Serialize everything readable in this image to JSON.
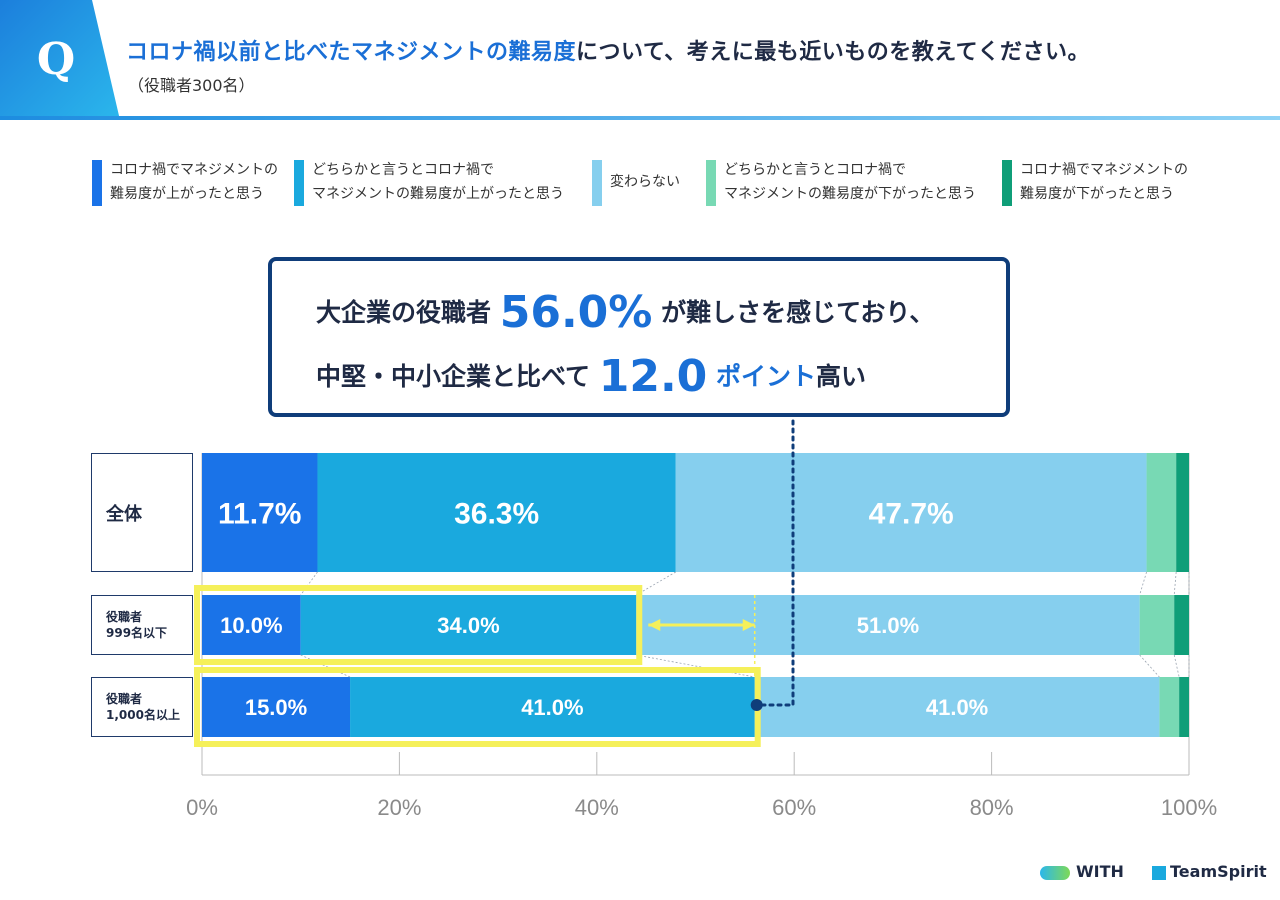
{
  "header": {
    "q_label": "Q",
    "title_highlight": "コロナ禍以前と比べたマネジメントの難易度",
    "title_rest": "について、考えに最も近いものを教えてください。",
    "subtitle": "（役職者300名）"
  },
  "legend": [
    {
      "line1": "コロナ禍でマネジメントの",
      "line2": "難易度が上がったと思う",
      "color": "#1a73e8"
    },
    {
      "line1": "どちらかと言うとコロナ禍で",
      "line2": "マネジメントの難易度が上がったと思う",
      "color": "#1aa9de"
    },
    {
      "line1": "変わらない",
      "line2": "",
      "color": "#86cfee"
    },
    {
      "line1": "どちらかと言うとコロナ禍で",
      "line2": "マネジメントの難易度が下がったと思う",
      "color": "#78d9b4"
    },
    {
      "line1": "コロナ禍でマネジメントの",
      "line2": "難易度が下がったと思う",
      "color": "#0f9e78"
    }
  ],
  "callout": {
    "line1_pre": "大企業の役職者",
    "line1_value": "56.0%",
    "line1_post": "が難しさを感じており、",
    "line2_pre": "中堅・中小企業と比べて",
    "line2_value": "12.0",
    "line2_unit": "ポイント",
    "line2_post": "高い"
  },
  "rows": {
    "all": {
      "label": "全体"
    },
    "small": {
      "label_line1": "役職者",
      "label_line2": "999名以下"
    },
    "large": {
      "label_line1": "役職者",
      "label_line2": "1,000名以上"
    }
  },
  "brands": {
    "with": "WITH",
    "teamspirit": "TeamSpirit"
  },
  "chart_data": {
    "type": "bar",
    "orientation": "horizontal",
    "stacked": true,
    "categories": [
      "全体",
      "役職者 999名以下",
      "役職者 1,000名以上"
    ],
    "series": [
      {
        "name": "コロナ禍でマネジメントの難易度が上がったと思う",
        "values": [
          11.7,
          10.0,
          15.0
        ],
        "labels": [
          "11.7%",
          "10.0%",
          "15.0%"
        ]
      },
      {
        "name": "どちらかと言うとコロナ禍でマネジメントの難易度が上がったと思う",
        "values": [
          36.3,
          34.0,
          41.0
        ],
        "labels": [
          "36.3%",
          "34.0%",
          "41.0%"
        ]
      },
      {
        "name": "変わらない",
        "values": [
          47.7,
          51.0,
          41.0
        ],
        "labels": [
          "47.7%",
          "51.0%",
          "41.0%"
        ]
      },
      {
        "name": "どちらかと言うとコロナ禍でマネジメントの難易度が下がったと思う",
        "values": [
          3.0,
          3.5,
          2.0
        ],
        "labels": [
          "",
          "",
          ""
        ]
      },
      {
        "name": "コロナ禍でマネジメントの難易度が下がったと思う",
        "values": [
          1.3,
          1.5,
          1.0
        ],
        "labels": [
          "",
          "",
          ""
        ]
      }
    ],
    "xlim": [
      0,
      100
    ],
    "xticks": [
      "0%",
      "20%",
      "40%",
      "60%",
      "80%",
      "100%"
    ],
    "xtick_values": [
      0,
      20,
      40,
      60,
      80,
      100
    ],
    "highlights": [
      {
        "row": 1,
        "from": 0,
        "to": 44.0
      },
      {
        "row": 2,
        "from": 0,
        "to": 56.0
      }
    ],
    "difference_points": 12.0
  }
}
